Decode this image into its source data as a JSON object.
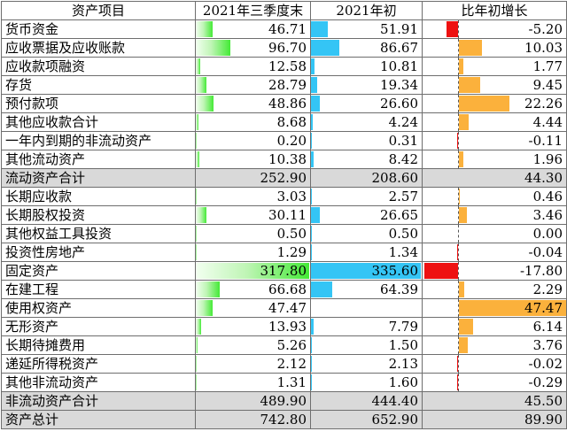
{
  "header": {
    "item": "资产项目",
    "q3": "2021年三季度末",
    "start": "2021年初",
    "growth": "比年初增长"
  },
  "colors": {
    "q3_bar": "#44ea36",
    "start_bar": "#34c5f5",
    "growth_positive": "#fbb13c",
    "growth_negative": "#ee1111",
    "total_row_bg": "#d9d9d9"
  },
  "bar_scale": {
    "q3_max": 317.8,
    "start_max": 335.6,
    "growth_max_abs": 47.47
  },
  "rows": [
    {
      "name": "货币资金",
      "q3": "46.71",
      "start": "51.91",
      "growth": "-5.20",
      "total": false
    },
    {
      "name": "应收票据及应收账款",
      "q3": "96.70",
      "start": "86.67",
      "growth": "10.03",
      "total": false
    },
    {
      "name": "应收款项融资",
      "q3": "12.58",
      "start": "10.81",
      "growth": "1.77",
      "total": false
    },
    {
      "name": "存货",
      "q3": "28.79",
      "start": "19.34",
      "growth": "9.45",
      "total": false
    },
    {
      "name": "预付款项",
      "q3": "48.86",
      "start": "26.60",
      "growth": "22.26",
      "total": false
    },
    {
      "name": "其他应收款合计",
      "q3": "8.68",
      "start": "4.24",
      "growth": "4.44",
      "total": false
    },
    {
      "name": "一年内到期的非流动资产",
      "q3": "0.20",
      "start": "0.31",
      "growth": "-0.11",
      "total": false
    },
    {
      "name": "其他流动资产",
      "q3": "10.38",
      "start": "8.42",
      "growth": "1.96",
      "total": false
    },
    {
      "name": "流动资产合计",
      "q3": "252.90",
      "start": "208.60",
      "growth": "44.30",
      "total": true
    },
    {
      "name": "长期应收款",
      "q3": "3.03",
      "start": "2.57",
      "growth": "0.46",
      "total": false
    },
    {
      "name": "长期股权投资",
      "q3": "30.11",
      "start": "26.65",
      "growth": "3.46",
      "total": false
    },
    {
      "name": "其他权益工具投资",
      "q3": "0.50",
      "start": "0.50",
      "growth": "0.00",
      "total": false
    },
    {
      "name": "投资性房地产",
      "q3": "1.29",
      "start": "1.34",
      "growth": "-0.04",
      "total": false
    },
    {
      "name": "固定资产",
      "q3": "317.80",
      "start": "335.60",
      "growth": "-17.80",
      "total": false
    },
    {
      "name": "在建工程",
      "q3": "66.68",
      "start": "64.39",
      "growth": "2.29",
      "total": false
    },
    {
      "name": "使用权资产",
      "q3": "47.47",
      "start": "",
      "growth": "47.47",
      "total": false
    },
    {
      "name": "无形资产",
      "q3": "13.93",
      "start": "7.79",
      "growth": "6.14",
      "total": false
    },
    {
      "name": "长期待摊费用",
      "q3": "5.26",
      "start": "1.50",
      "growth": "3.76",
      "total": false
    },
    {
      "name": "递延所得税资产",
      "q3": "2.12",
      "start": "2.13",
      "growth": "-0.02",
      "total": false
    },
    {
      "name": "其他非流动资产",
      "q3": "1.31",
      "start": "1.60",
      "growth": "-0.29",
      "total": false
    },
    {
      "name": "非流动资产合计",
      "q3": "489.90",
      "start": "444.40",
      "growth": "45.50",
      "total": true
    },
    {
      "name": "资产总计",
      "q3": "742.80",
      "start": "652.90",
      "growth": "89.90",
      "total": true
    }
  ]
}
